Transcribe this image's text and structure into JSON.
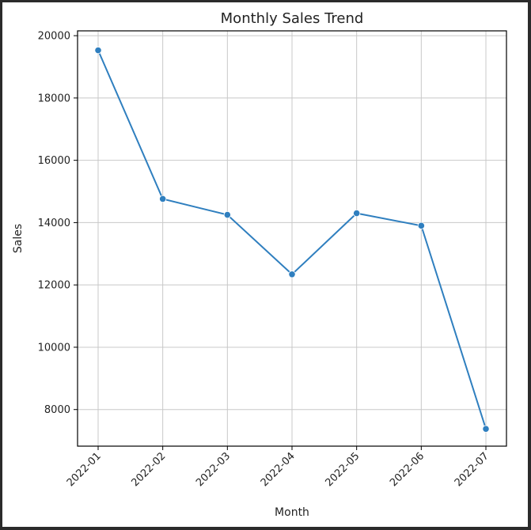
{
  "chart_data": {
    "type": "line",
    "title": "Monthly Sales Trend",
    "xlabel": "Month",
    "ylabel": "Sales",
    "categories": [
      "2022-01",
      "2022-02",
      "2022-03",
      "2022-04",
      "2022-05",
      "2022-06",
      "2022-07"
    ],
    "values": [
      19530,
      14760,
      14250,
      12340,
      14300,
      13900,
      7380
    ],
    "yticks": [
      8000,
      10000,
      12000,
      14000,
      16000,
      18000,
      20000
    ],
    "ylim": [
      6825,
      20155
    ],
    "grid": true,
    "markers": true,
    "line_color": "#2f7fbf",
    "grid_color": "#c8c8c8"
  }
}
